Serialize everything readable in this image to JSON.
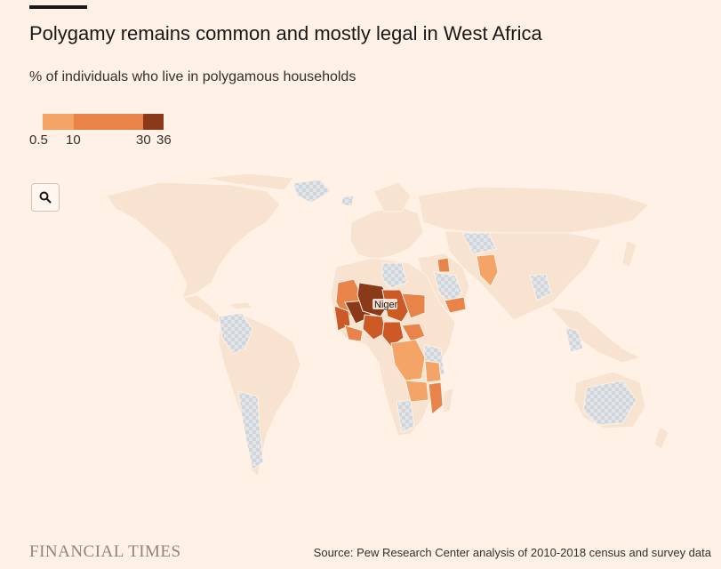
{
  "header": {
    "title": "Polygamy remains common and mostly legal in West Africa",
    "subtitle": "% of individuals who live in polygamous households"
  },
  "legend": {
    "ticks": [
      "0.5",
      "10",
      "30",
      "36"
    ],
    "breaks": [
      0.5,
      10,
      30,
      36
    ],
    "colors": [
      "#f4a467",
      "#e8834a",
      "#cc5a27",
      "#8b3a19"
    ]
  },
  "map": {
    "zoom_icon": "search-icon",
    "label_niger": "Niger",
    "colors": {
      "background": "#fff1e5",
      "land": "#f7e3cf",
      "no_data": "#d8dde2",
      "low": "#f4a467",
      "mid": "#e8834a",
      "high": "#cc5a27",
      "highest": "#8b3a19"
    }
  },
  "footer": {
    "logo": "FINANCIAL TIMES",
    "source": "Source: Pew Research Center analysis of 2010-2018 census and survey data"
  }
}
